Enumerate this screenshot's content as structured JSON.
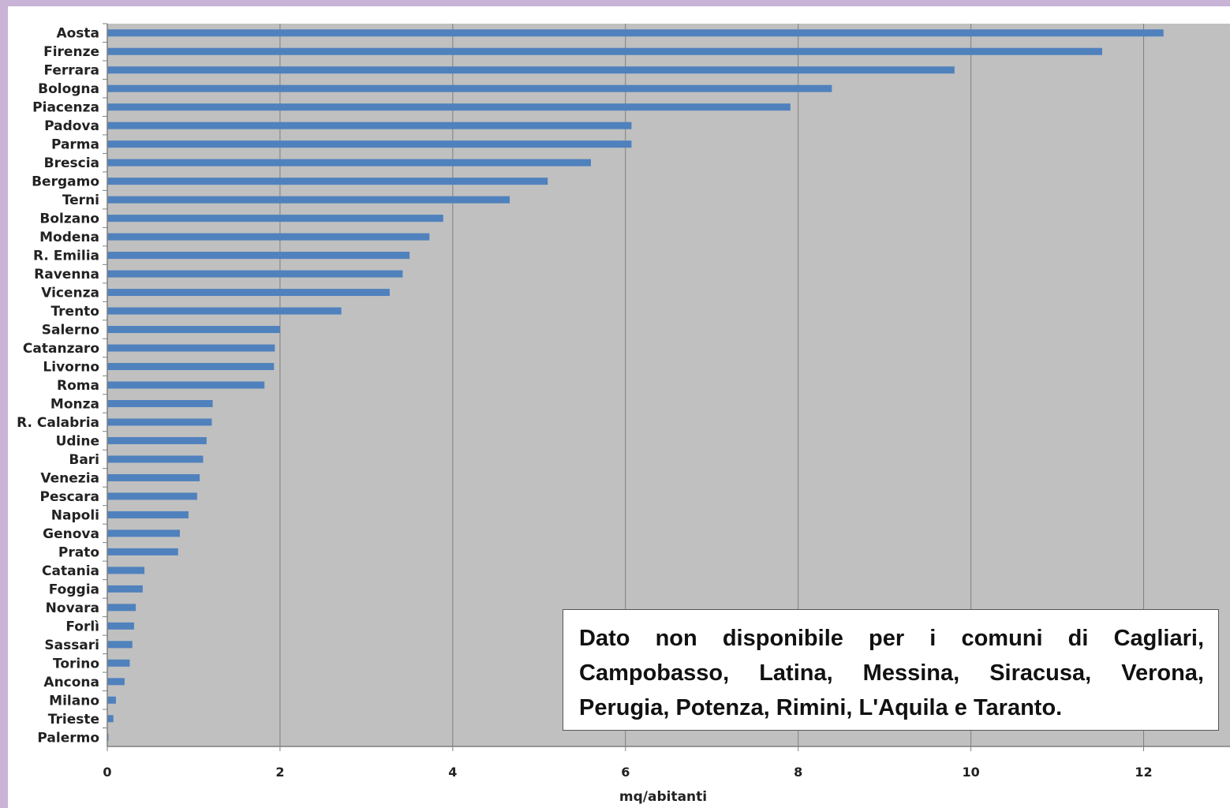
{
  "chart_data": {
    "type": "bar",
    "orientation": "horizontal",
    "categories": [
      "Aosta",
      "Firenze",
      "Ferrara",
      "Bologna",
      "Piacenza",
      "Padova",
      "Parma",
      "Brescia",
      "Bergamo",
      "Terni",
      "Bolzano",
      "Modena",
      "R. Emilia",
      "Ravenna",
      "Vicenza",
      "Trento",
      "Salerno",
      "Catanzaro",
      "Livorno",
      "Roma",
      "Monza",
      "R. Calabria",
      "Udine",
      "Bari",
      "Venezia",
      "Pescara",
      "Napoli",
      "Genova",
      "Prato",
      "Catania",
      "Foggia",
      "Novara",
      "Forlì",
      "Sassari",
      "Torino",
      "Ancona",
      "Milano",
      "Trieste",
      "Palermo"
    ],
    "values": [
      12.23,
      11.52,
      9.81,
      8.39,
      7.91,
      6.07,
      6.07,
      5.6,
      5.1,
      4.66,
      3.89,
      3.73,
      3.5,
      3.42,
      3.27,
      2.71,
      2.0,
      1.94,
      1.93,
      1.82,
      1.22,
      1.21,
      1.15,
      1.11,
      1.07,
      1.04,
      0.94,
      0.84,
      0.82,
      0.43,
      0.41,
      0.33,
      0.31,
      0.29,
      0.26,
      0.2,
      0.1,
      0.07,
      0.01
    ],
    "xlabel": "mq/abitanti",
    "ylabel": "",
    "xlim": [
      0,
      13
    ],
    "xticks": [
      "0",
      "2",
      "4",
      "6",
      "8",
      "10",
      "12"
    ],
    "grid": true,
    "bar_color": "#4f81bd",
    "plot_background": "#c0c0c0"
  },
  "note": {
    "text": "Dato non disponibile per i comuni di Cagliari, Campobasso, Latina, Messina, Siracusa, Verona, Perugia, Potenza, Rimini,  L'Aquila e Taranto."
  }
}
